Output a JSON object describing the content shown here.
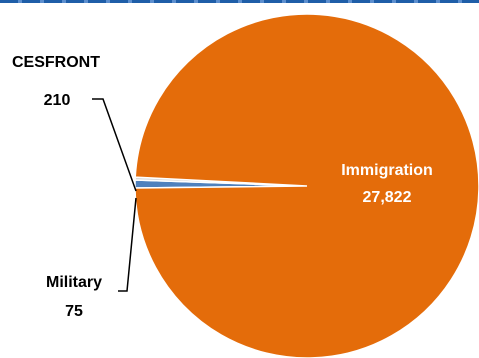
{
  "chart_data": {
    "type": "pie",
    "slices": [
      {
        "label": "Immigration",
        "value": 27822,
        "value_text": "27,822",
        "color": "#e46c0a"
      },
      {
        "label": "CESFRONT",
        "value": 210,
        "value_text": "210",
        "color": "#4f81bd"
      },
      {
        "label": "Military",
        "value": 75,
        "value_text": "75",
        "color": "#d9d9d9"
      }
    ],
    "label_colors": {
      "inside": "#ffffff",
      "outside": "#000000"
    }
  }
}
